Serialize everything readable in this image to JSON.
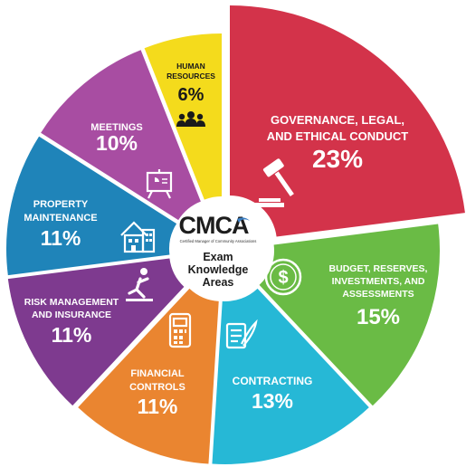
{
  "chart_data": {
    "type": "pie",
    "center": {
      "logo": "CMCA",
      "logo_subtitle": "Certified Manager of Community Associations",
      "title_lines": [
        "Exam",
        "Knowledge",
        "Areas"
      ]
    },
    "slices": [
      {
        "label_lines": [
          "GOVERNANCE, LEGAL,",
          "AND ETHICAL CONDUCT"
        ],
        "percent_label": "23%",
        "value": 23,
        "color": "#d3334a",
        "icon": "gavel-icon"
      },
      {
        "label_lines": [
          "BUDGET, RESERVES,",
          "INVESTMENTS, AND",
          "ASSESSMENTS"
        ],
        "percent_label": "15%",
        "value": 15,
        "color": "#6abb45",
        "icon": "dollar-coin-icon"
      },
      {
        "label_lines": [
          "CONTRACTING"
        ],
        "percent_label": "13%",
        "value": 13,
        "color": "#26b8d6",
        "icon": "contract-quill-icon"
      },
      {
        "label_lines": [
          "FINANCIAL",
          "CONTROLS"
        ],
        "percent_label": "11%",
        "value": 11,
        "color": "#ea8530",
        "icon": "calculator-icon"
      },
      {
        "label_lines": [
          "RISK MANAGEMENT",
          "AND INSURANCE"
        ],
        "percent_label": "11%",
        "value": 11,
        "color": "#7e3a8f",
        "icon": "falling-person-icon"
      },
      {
        "label_lines": [
          "PROPERTY",
          "MAINTENANCE"
        ],
        "percent_label": "11%",
        "value": 11,
        "color": "#1f84b9",
        "icon": "building-icon"
      },
      {
        "label_lines": [
          "MEETINGS"
        ],
        "percent_label": "10%",
        "value": 10,
        "color": "#a84da2",
        "icon": "presentation-board-icon"
      },
      {
        "label_lines": [
          "HUMAN",
          "RESOURCES"
        ],
        "percent_label": "6%",
        "value": 6,
        "color": "#f4db1c",
        "icon": "people-icon"
      }
    ]
  }
}
